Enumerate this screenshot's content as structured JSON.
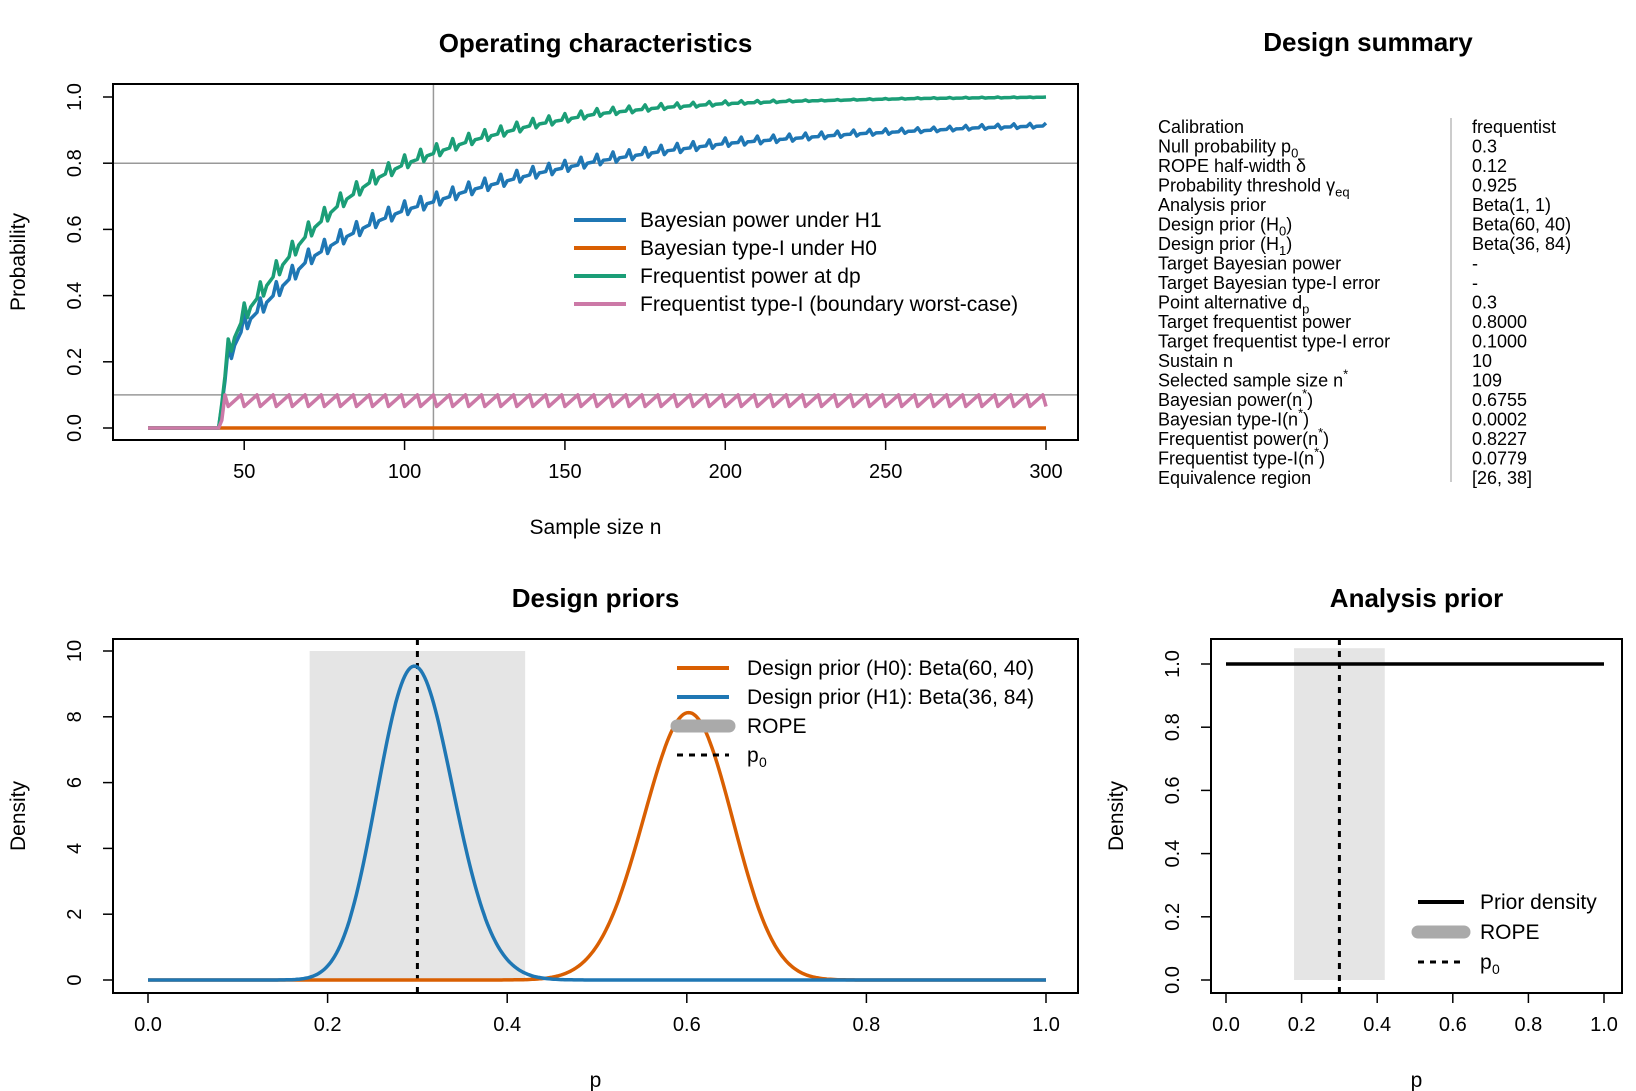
{
  "colors": {
    "bayes_power": "#1f77b4",
    "bayes_type1": "#d95f02",
    "freq_power": "#1b9e77",
    "freq_type1": "#cc79a7",
    "h0_prior": "#d95f02",
    "h1_prior": "#1f77b4",
    "rope_fill": "#e5e5e5",
    "rope_legend": "#aaaaaa",
    "refline": "#999999",
    "prior_line": "#000000"
  },
  "chart_data": [
    {
      "type": "line",
      "title": "Operating characteristics",
      "xlabel": "Sample size n",
      "ylabel": "Probability",
      "xlim": [
        20,
        300
      ],
      "ylim": [
        0,
        1
      ],
      "x_ticks": [
        "50",
        "100",
        "150",
        "200",
        "250",
        "300"
      ],
      "y_ticks": [
        "0.0",
        "0.2",
        "0.4",
        "0.6",
        "0.8",
        "1.0"
      ],
      "reference_lines": {
        "h": [
          0.8,
          0.1
        ],
        "v": [
          109
        ]
      },
      "legend_placement": "center-right",
      "series": [
        {
          "name": "Bayesian power under H1",
          "x": [
            20,
            42,
            45,
            50,
            60,
            70,
            80,
            90,
            100,
            109,
            120,
            140,
            160,
            180,
            200,
            220,
            240,
            260,
            280,
            300
          ],
          "values": [
            0,
            0,
            0.2,
            0.3,
            0.4,
            0.5,
            0.56,
            0.61,
            0.65,
            0.6755,
            0.71,
            0.76,
            0.8,
            0.83,
            0.855,
            0.87,
            0.885,
            0.895,
            0.905,
            0.91
          ]
        },
        {
          "name": "Bayesian type-I under H0",
          "x": [
            20,
            300
          ],
          "values": [
            0,
            0
          ]
        },
        {
          "name": "Frequentist power at dp",
          "x": [
            20,
            42,
            45,
            50,
            60,
            70,
            80,
            90,
            100,
            109,
            120,
            140,
            160,
            180,
            200,
            220,
            240,
            260,
            280,
            300
          ],
          "values": [
            0,
            0,
            0.22,
            0.33,
            0.46,
            0.58,
            0.67,
            0.74,
            0.79,
            0.8227,
            0.86,
            0.91,
            0.945,
            0.965,
            0.978,
            0.986,
            0.991,
            0.995,
            0.997,
            0.999
          ]
        },
        {
          "name": "Frequentist type-I (boundary worst-case)",
          "x": [
            20,
            42,
            45,
            300
          ],
          "values": [
            0,
            0,
            0.07,
            0.08
          ]
        }
      ]
    },
    {
      "type": "line",
      "title": "Design priors",
      "xlabel": "p",
      "ylabel": "Density",
      "xlim": [
        0,
        1
      ],
      "ylim": [
        0,
        10
      ],
      "x_ticks": [
        "0.0",
        "0.2",
        "0.4",
        "0.6",
        "0.8",
        "1.0"
      ],
      "y_ticks": [
        "0",
        "2",
        "4",
        "6",
        "8",
        "10"
      ],
      "rope": [
        0.18,
        0.42
      ],
      "p0": 0.3,
      "legend_placement": "top-right",
      "series": [
        {
          "name": "Design prior (H0): Beta(60, 40)",
          "alpha": 60,
          "beta": 40
        },
        {
          "name": "Design prior (H1): Beta(36, 84)",
          "alpha": 36,
          "beta": 84
        }
      ],
      "legend_extra": [
        "ROPE",
        "p",
        "0"
      ]
    },
    {
      "type": "line",
      "title": "Analysis prior",
      "xlabel": "p",
      "ylabel": "Density",
      "xlim": [
        0,
        1
      ],
      "ylim": [
        0,
        1
      ],
      "x_ticks": [
        "0.0",
        "0.2",
        "0.4",
        "0.6",
        "0.8",
        "1.0"
      ],
      "y_ticks": [
        "0.0",
        "0.2",
        "0.4",
        "0.6",
        "0.8",
        "1.0"
      ],
      "rope": [
        0.18,
        0.42
      ],
      "p0": 0.3,
      "legend_placement": "bottom-right",
      "series": [
        {
          "name": "Prior density",
          "x": [
            0,
            1
          ],
          "values": [
            1,
            1
          ]
        }
      ],
      "legend_extra": [
        "ROPE",
        "p",
        "0"
      ]
    }
  ],
  "summary": {
    "title": "Design summary",
    "rows": [
      {
        "label": "Calibration",
        "value": "frequentist"
      },
      {
        "label": "Null probability p",
        "sub": "0",
        "value": "0.3"
      },
      {
        "label": "ROPE half-width δ",
        "value": "0.12"
      },
      {
        "label": "Probability threshold γ",
        "sub": "eq",
        "value": "0.925"
      },
      {
        "label": "Analysis prior",
        "value": "Beta(1, 1)"
      },
      {
        "label": "Design prior (H",
        "sub": "0",
        "tail": ")",
        "value": "Beta(60, 40)"
      },
      {
        "label": "Design prior (H",
        "sub": "1",
        "tail": ")",
        "value": "Beta(36, 84)"
      },
      {
        "label": "Target Bayesian power",
        "value": "-"
      },
      {
        "label": "Target Bayesian type-I error",
        "value": "-"
      },
      {
        "label": "Point alternative d",
        "sub": "p",
        "value": "0.3"
      },
      {
        "label": "Target frequentist power",
        "value": "0.8000"
      },
      {
        "label": "Target frequentist type-I error",
        "value": "0.1000"
      },
      {
        "label": "Sustain n",
        "value": "10"
      },
      {
        "label": "Selected sample size n",
        "sup": "*",
        "value": "109"
      },
      {
        "label": "Bayesian power(n",
        "sup": "*",
        "tail": ")",
        "value": "0.6755"
      },
      {
        "label": "Bayesian type-I(n",
        "sup": "*",
        "tail": ")",
        "value": "0.0002"
      },
      {
        "label": "Frequentist power(n",
        "sup": "*",
        "tail": ")",
        "value": "0.8227"
      },
      {
        "label": "Frequentist type-I(n",
        "sup": "*",
        "tail": ")",
        "value": "0.0779"
      },
      {
        "label": "Equivalence region",
        "value": "[26, 38]"
      }
    ]
  }
}
